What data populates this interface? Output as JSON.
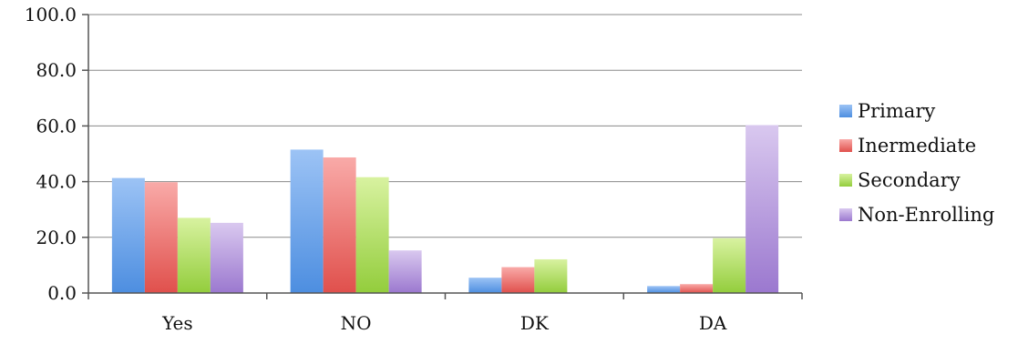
{
  "chart_data": {
    "type": "bar",
    "categories": [
      "Yes",
      "NO",
      "DK",
      "DA"
    ],
    "series": [
      {
        "name": "Primary",
        "values": [
          41.3,
          51.5,
          5.5,
          2.5
        ]
      },
      {
        "name": "Inermediate",
        "values": [
          39.8,
          48.7,
          9.3,
          3.2
        ]
      },
      {
        "name": "Secondary",
        "values": [
          27.0,
          41.6,
          12.1,
          19.7
        ]
      },
      {
        "name": "Non-Enrolling",
        "values": [
          25.2,
          15.3,
          0.0,
          60.3
        ]
      }
    ],
    "ylim": [
      0,
      100
    ],
    "yticks": [
      "0.0",
      "20.0",
      "40.0",
      "60.0",
      "80.0",
      "100.0"
    ],
    "ytick_values": [
      0,
      20,
      40,
      60,
      80,
      100
    ],
    "grid": true,
    "legend_position": "right",
    "colors": {
      "Primary": [
        "#9cc3f5",
        "#4d8ee0"
      ],
      "Inermediate": [
        "#f9aaa8",
        "#e0504c"
      ],
      "Secondary": [
        "#d8f2a0",
        "#93cd3c"
      ],
      "Non-Enrolling": [
        "#d9c8ef",
        "#9b78cf"
      ]
    }
  }
}
